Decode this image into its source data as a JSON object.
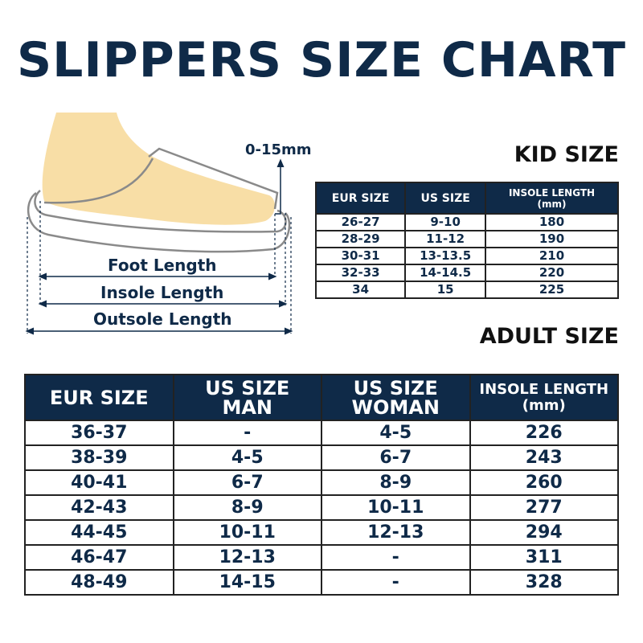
{
  "title": "SLIPPERS SIZE CHART",
  "diagram": {
    "allowance": "0-15mm",
    "foot_length": "Foot Length",
    "insole_length": "Insole Length",
    "outsole_length": "Outsole Length",
    "colors": {
      "foot": "#f8dea6",
      "outline": "#8a8a8a",
      "ink": "#0f2a48"
    }
  },
  "kid": {
    "label": "KID SIZE",
    "headers": [
      "EUR SIZE",
      "US SIZE",
      "INSOLE LENGTH",
      "(mm)"
    ],
    "rows": [
      [
        "26-27",
        "9-10",
        "180"
      ],
      [
        "28-29",
        "11-12",
        "190"
      ],
      [
        "30-31",
        "13-13.5",
        "210"
      ],
      [
        "32-33",
        "14-14.5",
        "220"
      ],
      [
        "34",
        "15",
        "225"
      ]
    ]
  },
  "adult": {
    "label": "ADULT SIZE",
    "headers": [
      "EUR SIZE",
      "US SIZE",
      "MAN",
      "US SIZE",
      "WOMAN",
      "INSOLE LENGTH",
      "(mm)"
    ],
    "rows": [
      [
        "36-37",
        "-",
        "4-5",
        "226"
      ],
      [
        "38-39",
        "4-5",
        "6-7",
        "243"
      ],
      [
        "40-41",
        "6-7",
        "8-9",
        "260"
      ],
      [
        "42-43",
        "8-9",
        "10-11",
        "277"
      ],
      [
        "44-45",
        "10-11",
        "12-13",
        "294"
      ],
      [
        "46-47",
        "12-13",
        "-",
        "311"
      ],
      [
        "48-49",
        "14-15",
        "-",
        "328"
      ]
    ]
  },
  "colors": {
    "header_bg": "#0f2a48",
    "text": "#0f2a48"
  }
}
